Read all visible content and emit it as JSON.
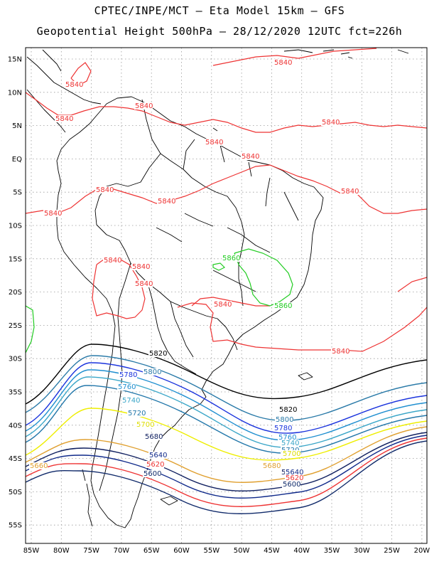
{
  "title_line1": "CPTEC/INPE/MCT –  Eta Model 15km – GFS",
  "title_line2": "Geopotential Height 500hPa – 28/12/2020 12UTC fct=226h",
  "lat_labels": [
    "15N",
    "10N",
    "5N",
    "EQ",
    "5S",
    "10S",
    "15S",
    "20S",
    "25S",
    "30S",
    "35S",
    "40S",
    "45S",
    "50S",
    "55S"
  ],
  "lon_labels": [
    "85W",
    "80W",
    "75W",
    "70W",
    "65W",
    "60W",
    "55W",
    "50W",
    "45W",
    "40W",
    "35W",
    "30W",
    "25W",
    "20W"
  ],
  "contour_levels": [
    {
      "value": "5860",
      "color": "#22cc22"
    },
    {
      "value": "5840",
      "color": "#ee3333"
    },
    {
      "value": "5820",
      "color": "#000000"
    },
    {
      "value": "5800",
      "color": "#2a7aa8"
    },
    {
      "value": "5780",
      "color": "#1a33dd"
    },
    {
      "value": "5760",
      "color": "#1f8fd0"
    },
    {
      "value": "5740",
      "color": "#3aa6c8"
    },
    {
      "value": "5720",
      "color": "#2277aa"
    },
    {
      "value": "5700",
      "color": "#eeee00"
    },
    {
      "value": "5680",
      "color": "#e0a030"
    },
    {
      "value": "5660",
      "color": "#102060"
    },
    {
      "value": "5640",
      "color": "#102a8a"
    },
    {
      "value": "5620",
      "color": "#ee3333"
    },
    {
      "value": "5600",
      "color": "#102a6a"
    }
  ],
  "labels": [
    {
      "text": "5840",
      "color": "#ee3333"
    },
    {
      "text": "5840",
      "color": "#ee3333"
    },
    {
      "text": "5840",
      "color": "#ee3333"
    },
    {
      "text": "5840",
      "color": "#ee3333"
    },
    {
      "text": "5840",
      "color": "#ee3333"
    },
    {
      "text": "5840",
      "color": "#ee3333"
    },
    {
      "text": "5840",
      "color": "#ee3333"
    },
    {
      "text": "5840",
      "color": "#ee3333"
    },
    {
      "text": "5840",
      "color": "#ee3333"
    },
    {
      "text": "5840",
      "color": "#ee3333"
    },
    {
      "text": "5840",
      "color": "#ee3333"
    },
    {
      "text": "5840",
      "color": "#ee3333"
    },
    {
      "text": "5840",
      "color": "#ee3333"
    },
    {
      "text": "5840",
      "color": "#ee3333"
    },
    {
      "text": "5840",
      "color": "#ee3333"
    },
    {
      "text": "5840",
      "color": "#ee3333"
    },
    {
      "text": "5860",
      "color": "#22cc22"
    },
    {
      "text": "5860",
      "color": "#22cc22"
    },
    {
      "text": "5820",
      "color": "#000000"
    },
    {
      "text": "5820",
      "color": "#000000"
    },
    {
      "text": "5800",
      "color": "#2a7aa8"
    },
    {
      "text": "5800",
      "color": "#2a7aa8"
    },
    {
      "text": "5780",
      "color": "#1a33dd"
    },
    {
      "text": "5780",
      "color": "#1a33dd"
    },
    {
      "text": "5760",
      "color": "#1f8fd0"
    },
    {
      "text": "5760",
      "color": "#1f8fd0"
    },
    {
      "text": "5740",
      "color": "#3aa6c8"
    },
    {
      "text": "5740",
      "color": "#3aa6c8"
    },
    {
      "text": "5720",
      "color": "#2277aa"
    },
    {
      "text": "5720",
      "color": "#2277aa"
    },
    {
      "text": "5700",
      "color": "#dddd00"
    },
    {
      "text": "5700",
      "color": "#dddd00"
    },
    {
      "text": "5680",
      "color": "#102060"
    },
    {
      "text": "5680",
      "color": "#e0a030"
    },
    {
      "text": "5660",
      "color": "#e0a030"
    },
    {
      "text": "5660",
      "color": "#102060"
    },
    {
      "text": "5640",
      "color": "#102a8a"
    },
    {
      "text": "5640",
      "color": "#102a8a"
    },
    {
      "text": "5620",
      "color": "#ee3333"
    },
    {
      "text": "5620",
      "color": "#ee3333"
    },
    {
      "text": "5600",
      "color": "#102a6a"
    },
    {
      "text": "5600",
      "color": "#102a6a"
    }
  ]
}
